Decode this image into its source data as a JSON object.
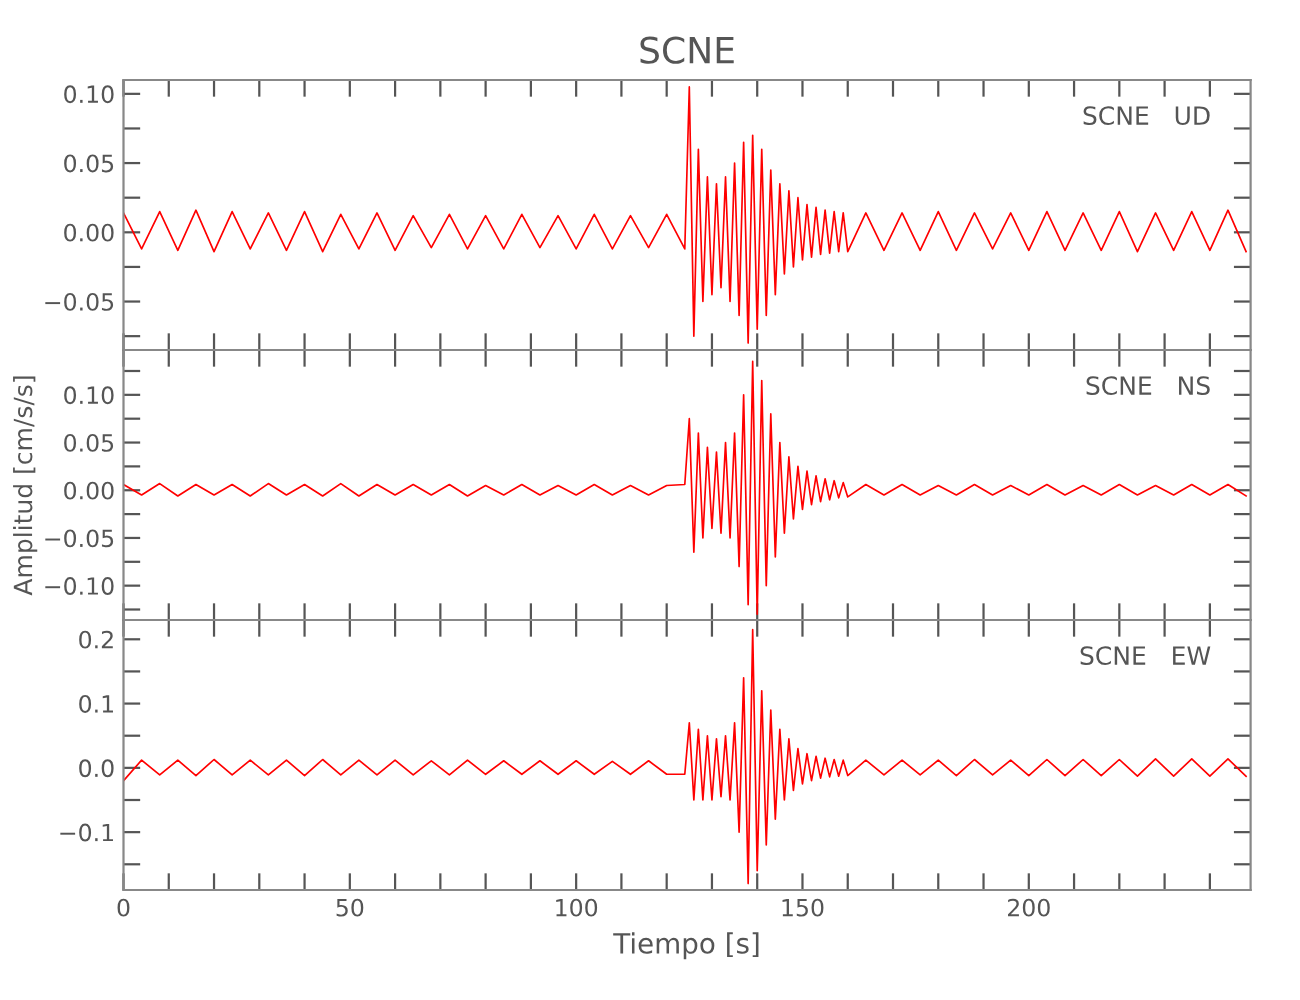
{
  "chart_data": [
    {
      "type": "line",
      "title": "SCNE",
      "annotations": [
        "SCNE   UD"
      ],
      "tick_labels": "y",
      "x": [
        0,
        4,
        8,
        12,
        16,
        20,
        24,
        28,
        32,
        36,
        40,
        44,
        48,
        52,
        56,
        60,
        64,
        68,
        72,
        76,
        80,
        84,
        88,
        92,
        96,
        100,
        104,
        108,
        112,
        116,
        120,
        124,
        125,
        126,
        127,
        128,
        129,
        130,
        131,
        132,
        133,
        134,
        135,
        136,
        137,
        138,
        139,
        140,
        141,
        142,
        143,
        144,
        145,
        146,
        147,
        148,
        149,
        150,
        151,
        152,
        153,
        154,
        155,
        156,
        157,
        158,
        159,
        160,
        164,
        168,
        172,
        176,
        180,
        184,
        188,
        192,
        196,
        200,
        204,
        208,
        212,
        216,
        220,
        224,
        228,
        232,
        236,
        240,
        244,
        248
      ],
      "xlim": [
        0,
        249
      ],
      "xticks": [
        {
          "value": 0,
          "label": null
        },
        {
          "value": 10,
          "label": null
        },
        {
          "value": 20,
          "label": null
        },
        {
          "value": 30,
          "label": null
        },
        {
          "value": 40,
          "label": null
        },
        {
          "value": 50,
          "label": null
        },
        {
          "value": 60,
          "label": null
        },
        {
          "value": 70,
          "label": null
        },
        {
          "value": 80,
          "label": null
        },
        {
          "value": 90,
          "label": null
        },
        {
          "value": 100,
          "label": null
        },
        {
          "value": 110,
          "label": null
        },
        {
          "value": 120,
          "label": null
        },
        {
          "value": 130,
          "label": null
        },
        {
          "value": 140,
          "label": null
        },
        {
          "value": 150,
          "label": null
        },
        {
          "value": 160,
          "label": null
        },
        {
          "value": 170,
          "label": null
        },
        {
          "value": 180,
          "label": null
        },
        {
          "value": 190,
          "label": null
        },
        {
          "value": 200,
          "label": null
        },
        {
          "value": 210,
          "label": null
        },
        {
          "value": 220,
          "label": null
        },
        {
          "value": 230,
          "label": null
        },
        {
          "value": 240,
          "label": null
        }
      ],
      "ylim": [
        -0.085,
        0.11
      ],
      "yticks": [
        {
          "value": -0.075,
          "label": null
        },
        {
          "value": -0.05,
          "label": "−0.05"
        },
        {
          "value": -0.025,
          "label": null
        },
        {
          "value": 0,
          "label": "0.00"
        },
        {
          "value": 0.025,
          "label": null
        },
        {
          "value": 0.05,
          "label": "0.05"
        },
        {
          "value": 0.075,
          "label": null
        },
        {
          "value": 0.1,
          "label": "0.10"
        }
      ],
      "series": [
        {
          "color": "#ff0000",
          "values": [
            0.014,
            -0.012,
            0.015,
            -0.013,
            0.016,
            -0.014,
            0.015,
            -0.012,
            0.014,
            -0.013,
            0.015,
            -0.014,
            0.013,
            -0.012,
            0.014,
            -0.013,
            0.012,
            -0.011,
            0.013,
            -0.012,
            0.012,
            -0.012,
            0.013,
            -0.011,
            0.012,
            -0.012,
            0.013,
            -0.012,
            0.012,
            -0.011,
            0.013,
            -0.012,
            0.105,
            -0.075,
            0.06,
            -0.05,
            0.04,
            -0.045,
            0.035,
            -0.04,
            0.04,
            -0.05,
            0.05,
            -0.06,
            0.065,
            -0.08,
            0.07,
            -0.07,
            0.06,
            -0.06,
            0.045,
            -0.045,
            0.035,
            -0.03,
            0.03,
            -0.025,
            0.025,
            -0.02,
            0.02,
            -0.018,
            0.018,
            -0.016,
            0.016,
            -0.015,
            0.015,
            -0.014,
            0.014,
            -0.014,
            0.014,
            -0.013,
            0.014,
            -0.013,
            0.015,
            -0.013,
            0.014,
            -0.012,
            0.014,
            -0.013,
            0.015,
            -0.013,
            0.014,
            -0.013,
            0.015,
            -0.014,
            0.014,
            -0.013,
            0.015,
            -0.013,
            0.016,
            -0.014
          ]
        }
      ]
    },
    {
      "type": "line",
      "ylabel": "Amplitud [cm/s/s]",
      "annotations": [
        "SCNE   NS"
      ],
      "tick_labels": "y",
      "x": [
        0,
        4,
        8,
        12,
        16,
        20,
        24,
        28,
        32,
        36,
        40,
        44,
        48,
        52,
        56,
        60,
        64,
        68,
        72,
        76,
        80,
        84,
        88,
        92,
        96,
        100,
        104,
        108,
        112,
        116,
        120,
        124,
        125,
        126,
        127,
        128,
        129,
        130,
        131,
        132,
        133,
        134,
        135,
        136,
        137,
        138,
        139,
        140,
        141,
        142,
        143,
        144,
        145,
        146,
        147,
        148,
        149,
        150,
        151,
        152,
        153,
        154,
        155,
        156,
        157,
        158,
        159,
        160,
        164,
        168,
        172,
        176,
        180,
        184,
        188,
        192,
        196,
        200,
        204,
        208,
        212,
        216,
        220,
        224,
        228,
        232,
        236,
        240,
        244,
        248
      ],
      "xlim": [
        0,
        249
      ],
      "xticks": [
        {
          "value": 0,
          "label": null
        },
        {
          "value": 10,
          "label": null
        },
        {
          "value": 20,
          "label": null
        },
        {
          "value": 30,
          "label": null
        },
        {
          "value": 40,
          "label": null
        },
        {
          "value": 50,
          "label": null
        },
        {
          "value": 60,
          "label": null
        },
        {
          "value": 70,
          "label": null
        },
        {
          "value": 80,
          "label": null
        },
        {
          "value": 90,
          "label": null
        },
        {
          "value": 100,
          "label": null
        },
        {
          "value": 110,
          "label": null
        },
        {
          "value": 120,
          "label": null
        },
        {
          "value": 130,
          "label": null
        },
        {
          "value": 140,
          "label": null
        },
        {
          "value": 150,
          "label": null
        },
        {
          "value": 160,
          "label": null
        },
        {
          "value": 170,
          "label": null
        },
        {
          "value": 180,
          "label": null
        },
        {
          "value": 190,
          "label": null
        },
        {
          "value": 200,
          "label": null
        },
        {
          "value": 210,
          "label": null
        },
        {
          "value": 220,
          "label": null
        },
        {
          "value": 230,
          "label": null
        },
        {
          "value": 240,
          "label": null
        }
      ],
      "ylim": [
        -0.136,
        0.147
      ],
      "yticks": [
        {
          "value": -0.125,
          "label": null
        },
        {
          "value": -0.1,
          "label": "−0.10"
        },
        {
          "value": -0.075,
          "label": null
        },
        {
          "value": -0.05,
          "label": "−0.05"
        },
        {
          "value": -0.025,
          "label": null
        },
        {
          "value": 0,
          "label": "0.00"
        },
        {
          "value": 0.025,
          "label": null
        },
        {
          "value": 0.05,
          "label": "0.05"
        },
        {
          "value": 0.075,
          "label": null
        },
        {
          "value": 0.1,
          "label": "0.10"
        },
        {
          "value": 0.125,
          "label": null
        }
      ],
      "series": [
        {
          "color": "#ff0000",
          "values": [
            0.006,
            -0.005,
            0.007,
            -0.006,
            0.006,
            -0.005,
            0.006,
            -0.006,
            0.007,
            -0.005,
            0.006,
            -0.006,
            0.007,
            -0.006,
            0.006,
            -0.005,
            0.006,
            -0.005,
            0.006,
            -0.006,
            0.005,
            -0.005,
            0.006,
            -0.005,
            0.005,
            -0.005,
            0.006,
            -0.005,
            0.005,
            -0.005,
            0.005,
            0.006,
            0.075,
            -0.065,
            0.06,
            -0.05,
            0.045,
            -0.04,
            0.04,
            -0.045,
            0.05,
            -0.05,
            0.06,
            -0.08,
            0.1,
            -0.12,
            0.135,
            -0.13,
            0.115,
            -0.1,
            0.08,
            -0.07,
            0.05,
            -0.045,
            0.035,
            -0.03,
            0.025,
            -0.02,
            0.02,
            -0.015,
            0.015,
            -0.012,
            0.012,
            -0.01,
            0.01,
            -0.008,
            0.008,
            -0.007,
            0.006,
            -0.005,
            0.006,
            -0.005,
            0.005,
            -0.005,
            0.006,
            -0.005,
            0.005,
            -0.005,
            0.006,
            -0.005,
            0.005,
            -0.005,
            0.006,
            -0.005,
            0.005,
            -0.005,
            0.006,
            -0.005,
            0.006,
            -0.006
          ]
        }
      ]
    },
    {
      "type": "line",
      "xlabel": "Tiempo [s]",
      "annotations": [
        "SCNE   EW"
      ],
      "x": [
        0,
        4,
        8,
        12,
        16,
        20,
        24,
        28,
        32,
        36,
        40,
        44,
        48,
        52,
        56,
        60,
        64,
        68,
        72,
        76,
        80,
        84,
        88,
        92,
        96,
        100,
        104,
        108,
        112,
        116,
        120,
        124,
        125,
        126,
        127,
        128,
        129,
        130,
        131,
        132,
        133,
        134,
        135,
        136,
        137,
        138,
        139,
        140,
        141,
        142,
        143,
        144,
        145,
        146,
        147,
        148,
        149,
        150,
        151,
        152,
        153,
        154,
        155,
        156,
        157,
        158,
        159,
        160,
        164,
        168,
        172,
        176,
        180,
        184,
        188,
        192,
        196,
        200,
        204,
        208,
        212,
        216,
        220,
        224,
        228,
        232,
        236,
        240,
        244,
        248
      ],
      "xlim": [
        0,
        249
      ],
      "xticks": [
        {
          "value": 0,
          "label": "0"
        },
        {
          "value": 10,
          "label": null
        },
        {
          "value": 20,
          "label": null
        },
        {
          "value": 30,
          "label": null
        },
        {
          "value": 40,
          "label": null
        },
        {
          "value": 50,
          "label": "50"
        },
        {
          "value": 60,
          "label": null
        },
        {
          "value": 70,
          "label": null
        },
        {
          "value": 80,
          "label": null
        },
        {
          "value": 90,
          "label": null
        },
        {
          "value": 100,
          "label": "100"
        },
        {
          "value": 110,
          "label": null
        },
        {
          "value": 120,
          "label": null
        },
        {
          "value": 130,
          "label": null
        },
        {
          "value": 140,
          "label": null
        },
        {
          "value": 150,
          "label": "150"
        },
        {
          "value": 160,
          "label": null
        },
        {
          "value": 170,
          "label": null
        },
        {
          "value": 180,
          "label": null
        },
        {
          "value": 190,
          "label": null
        },
        {
          "value": 200,
          "label": "200"
        },
        {
          "value": 210,
          "label": null
        },
        {
          "value": 220,
          "label": null
        },
        {
          "value": 230,
          "label": null
        },
        {
          "value": 240,
          "label": null
        }
      ],
      "ylim": [
        -0.19,
        0.23
      ],
      "yticks": [
        {
          "value": -0.15,
          "label": null
        },
        {
          "value": -0.1,
          "label": "−0.1"
        },
        {
          "value": -0.05,
          "label": null
        },
        {
          "value": 0,
          "label": "0.0"
        },
        {
          "value": 0.05,
          "label": null
        },
        {
          "value": 0.1,
          "label": "0.1"
        },
        {
          "value": 0.15,
          "label": null
        },
        {
          "value": 0.2,
          "label": "0.2"
        }
      ],
      "series": [
        {
          "color": "#ff0000",
          "values": [
            -0.02,
            0.012,
            -0.011,
            0.012,
            -0.012,
            0.013,
            -0.011,
            0.012,
            -0.011,
            0.012,
            -0.012,
            0.013,
            -0.011,
            0.012,
            -0.011,
            0.012,
            -0.011,
            0.011,
            -0.011,
            0.012,
            -0.01,
            0.011,
            -0.01,
            0.011,
            -0.01,
            0.011,
            -0.01,
            0.01,
            -0.01,
            0.011,
            -0.01,
            -0.01,
            0.07,
            -0.05,
            0.06,
            -0.05,
            0.05,
            -0.05,
            0.045,
            -0.045,
            0.05,
            -0.05,
            0.07,
            -0.1,
            0.14,
            -0.18,
            0.215,
            -0.16,
            0.12,
            -0.12,
            0.09,
            -0.08,
            0.06,
            -0.05,
            0.045,
            -0.035,
            0.03,
            -0.025,
            0.022,
            -0.02,
            0.018,
            -0.016,
            0.015,
            -0.014,
            0.013,
            -0.013,
            0.012,
            -0.012,
            0.012,
            -0.011,
            0.012,
            -0.011,
            0.012,
            -0.012,
            0.013,
            -0.011,
            0.012,
            -0.012,
            0.013,
            -0.012,
            0.013,
            -0.012,
            0.013,
            -0.013,
            0.014,
            -0.013,
            0.014,
            -0.013,
            0.014,
            -0.013
          ]
        }
      ]
    }
  ]
}
